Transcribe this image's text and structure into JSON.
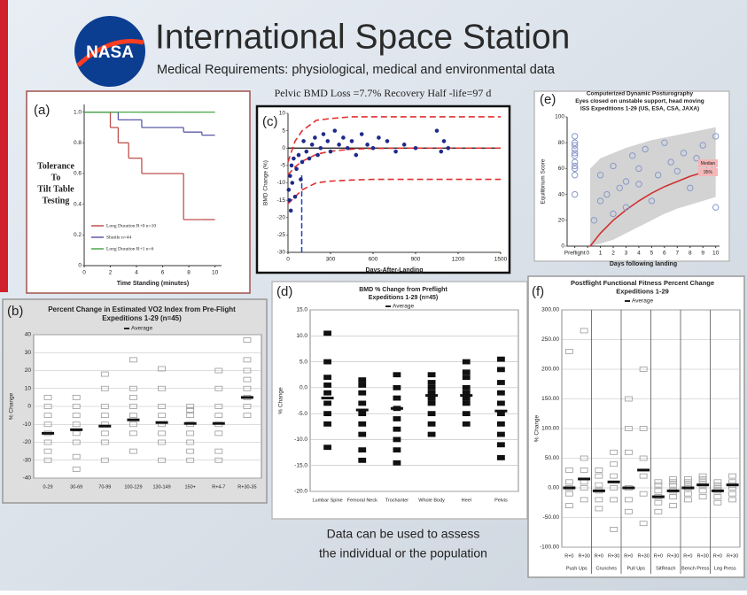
{
  "header": {
    "logo": "NASA",
    "title": "International Space Station",
    "subtitle": "Medical Requirements: physiological, medical and environmental data"
  },
  "caption": [
    "Data can be used to assess",
    "the individual or the population"
  ],
  "chart_data": [
    {
      "type": "step",
      "panel_label": "(a)",
      "title": [],
      "ylabel_lines": [
        "Tolerance",
        "To",
        "Tilt Table",
        "Testing"
      ],
      "xlabel": "Time Standing (minutes)",
      "x": [
        0,
        2,
        2.6,
        3.4,
        4.4,
        7.6,
        9,
        10
      ],
      "xlim": [
        0,
        10.5
      ],
      "xticks": [
        0,
        2,
        4,
        6,
        8,
        10
      ],
      "ylim": [
        0,
        1.05
      ],
      "yticks": [
        0,
        0.2,
        0.4,
        0.6,
        0.8,
        {
          "value": 1,
          "label": "1.0"
        }
      ],
      "series": [
        {
          "name": "Long Duration R+0 n=10",
          "color": "#c0504d",
          "values": [
            1,
            0.9,
            0.8,
            0.7,
            0.6,
            0.3,
            0.3,
            0.3
          ]
        },
        {
          "name": "Shuttle n=44",
          "color": "#5b5ba8",
          "values": [
            1,
            1,
            0.95,
            0.95,
            0.9,
            0.87,
            0.85,
            0.85
          ]
        },
        {
          "name": "Long Duration R+1 n=6",
          "color": "#4aa84a",
          "values": [
            1,
            1,
            1,
            1,
            1,
            1,
            1,
            1
          ]
        }
      ]
    },
    {
      "type": "scatter",
      "panel_label": "(c)",
      "title": [
        "Pelvic BMD Loss =7.7% Recovery Half -life=97 d"
      ],
      "xlabel": "Days-After-Landing",
      "ylabel": "BMD Change (%)",
      "xlim": [
        0,
        1500
      ],
      "xticks": [
        0,
        300,
        600,
        900,
        1200,
        1500
      ],
      "ylim": [
        -30,
        10
      ],
      "yticks": [
        -30,
        -25,
        -20,
        -15,
        -10,
        -5,
        0,
        5,
        10
      ],
      "color": "#1f2a8a",
      "x": [
        5,
        10,
        15,
        20,
        25,
        30,
        40,
        50,
        60,
        75,
        90,
        100,
        110,
        130,
        150,
        170,
        190,
        210,
        230,
        250,
        280,
        300,
        330,
        360,
        390,
        420,
        450,
        480,
        520,
        560,
        600,
        640,
        700,
        760,
        820,
        900,
        1050,
        1080,
        1100,
        1130
      ],
      "values": [
        -12,
        -15,
        -8,
        -18,
        -5,
        -10,
        -3,
        -14,
        -6,
        -2,
        -9,
        -4,
        2,
        -1,
        -3,
        1,
        3,
        -2,
        0,
        4,
        2,
        -1,
        5,
        1,
        3,
        0,
        2,
        -2,
        4,
        1,
        0,
        3,
        2,
        -1,
        1,
        0,
        5,
        -1,
        2,
        0
      ],
      "lines": [
        {
          "color": "#e03030",
          "x": [
            0,
            50,
            100,
            200,
            300,
            450,
            600,
            900,
            1500
          ],
          "values": [
            -7.7,
            -5.4,
            -3.8,
            -1.8,
            -0.9,
            -0.3,
            -0.1,
            0,
            0
          ]
        },
        {
          "color": "#e03030",
          "x": [
            0,
            50,
            100,
            200,
            300,
            450,
            600,
            900,
            1500
          ],
          "values": [
            -4,
            2,
            5,
            8,
            8.5,
            9,
            9,
            9,
            9
          ]
        },
        {
          "color": "#e03030",
          "x": [
            0,
            50,
            100,
            200,
            300,
            450,
            600,
            900,
            1500
          ],
          "values": [
            -16,
            -14,
            -12,
            -10,
            -9.5,
            -9.2,
            -9,
            -9,
            -9
          ]
        }
      ],
      "vline": {
        "x": 97,
        "values": [
          -30,
          -7.7
        ],
        "color": "#2040c0"
      }
    },
    {
      "type": "scatter",
      "panel_label": "(e)",
      "title": [
        "Computerized Dynamic Posturography",
        "Eyes closed on unstable support, head moving",
        "ISS Expeditions 1-29 (US, ESA, CSA, JAXA)"
      ],
      "xlabel": "Days following landing",
      "ylabel": "Equilibrium Score",
      "xlim": [
        -1.6,
        10.3
      ],
      "xticks": [
        {
          "value": -1,
          "label": "Preflight"
        },
        0,
        1,
        2,
        3,
        4,
        5,
        6,
        7,
        8,
        9,
        10
      ],
      "ylim": [
        0,
        100
      ],
      "yticks": [
        0,
        20,
        40,
        60,
        80,
        100
      ],
      "color": "#8899cc",
      "x": [
        -1,
        -1,
        -1,
        -1,
        -1,
        -1,
        -1,
        -1,
        -1,
        -1,
        -1,
        0.5,
        1,
        1,
        1.5,
        2,
        2,
        2.5,
        3,
        3,
        3.5,
        4,
        4,
        4.5,
        5,
        5.5,
        6,
        6.5,
        7,
        7.5,
        8,
        8.5,
        9,
        9.5,
        10,
        10
      ],
      "values": [
        40,
        55,
        60,
        62,
        65,
        70,
        72,
        75,
        78,
        80,
        85,
        20,
        35,
        55,
        40,
        25,
        62,
        45,
        50,
        30,
        70,
        48,
        60,
        75,
        35,
        55,
        80,
        65,
        58,
        72,
        45,
        68,
        78,
        60,
        85,
        30
      ],
      "band": {
        "color": "#c8c8c8",
        "x": [
          0.2,
          1,
          2,
          3,
          4,
          5,
          6,
          7,
          8,
          9,
          10
        ],
        "low": [
          0,
          2,
          5,
          10,
          15,
          20,
          25,
          29,
          32,
          35,
          38
        ],
        "high": [
          60,
          68,
          72,
          76,
          79,
          82,
          84,
          86,
          88,
          90,
          92
        ]
      },
      "lines": [
        {
          "color": "#d03030",
          "x": [
            0.2,
            1,
            2,
            3,
            4,
            5,
            6,
            7,
            8,
            9,
            10
          ],
          "values": [
            0,
            10,
            20,
            28,
            35,
            41,
            46,
            50,
            54,
            57,
            60
          ]
        }
      ],
      "legend_labels": [
        "Median",
        "95%"
      ]
    },
    {
      "type": "strip",
      "panel_label": "(b)",
      "title": [
        "Percent Change in Estimated VO2 Index from Pre-Flight",
        "Expeditions 1-29 (n=45)"
      ],
      "legend": "Average",
      "ylabel": "% Change",
      "categories": [
        "0-29",
        "30-69",
        "70-99",
        "100-129",
        "130-149",
        "150+",
        "R+4-7",
        "R+30-35"
      ],
      "ylim": [
        -40,
        40
      ],
      "yticks": [
        -40,
        -30,
        -20,
        -10,
        0,
        10,
        20,
        30,
        40
      ],
      "color": "#999999",
      "values": [
        -15,
        -13,
        -11,
        -7.5,
        -9,
        -9.5,
        -9.5,
        5
      ],
      "points": [
        [
          -25,
          -20,
          -15,
          -10,
          -5,
          0,
          5,
          -30
        ],
        [
          -35,
          -28,
          -20,
          -15,
          -10,
          -5,
          0,
          5
        ],
        [
          -30,
          -20,
          -15,
          -10,
          -5,
          0,
          10,
          18
        ],
        [
          -25,
          -15,
          -10,
          -5,
          0,
          5,
          10,
          26
        ],
        [
          -30,
          -20,
          -15,
          -10,
          -5,
          0,
          10,
          21
        ],
        [
          -30,
          -20,
          -15,
          -10,
          -5,
          0,
          -25,
          -2
        ],
        [
          -30,
          -25,
          -15,
          -10,
          -5,
          0,
          10,
          20
        ],
        [
          -5,
          0,
          5,
          10,
          15,
          20,
          26,
          37
        ]
      ]
    },
    {
      "type": "strip",
      "panel_label": "(d)",
      "title": [
        "BMD % Change from Preflight",
        "Expeditions 1-29 (n=45)"
      ],
      "legend": "Average",
      "ylabel": "% Change",
      "categories": [
        "Lumbar Spine",
        "Femoral Neck",
        "Trochanter",
        "Whole Body",
        "Heel",
        "Pelvis"
      ],
      "ylim": [
        -20,
        15
      ],
      "yticks": [
        {
          "value": -20,
          "label": "-20.0"
        },
        {
          "value": -15,
          "label": "-15.0"
        },
        {
          "value": -10,
          "label": "-10.0"
        },
        {
          "value": -5,
          "label": "-5.0"
        },
        {
          "value": 0,
          "label": "0.0"
        },
        {
          "value": 5,
          "label": "5.0"
        },
        {
          "value": 10,
          "label": "10.0"
        },
        {
          "value": 15,
          "label": "15.0"
        }
      ],
      "color": "#111111",
      "values": [
        -2,
        -4.3,
        -4,
        -1.5,
        -1.5,
        -4.5
      ],
      "points": [
        [
          -11.5,
          -7,
          -5,
          -3,
          -1,
          0.5,
          2,
          5,
          10.5
        ],
        [
          -14,
          -12,
          -9,
          -7,
          -5,
          -3,
          -1,
          0.5,
          1.5
        ],
        [
          -14.5,
          -12,
          -10,
          -8,
          -6,
          -4,
          -2,
          0,
          2.5
        ],
        [
          -9,
          -7,
          -5,
          -3,
          -2,
          -1,
          0,
          1,
          2.5
        ],
        [
          -7,
          -5,
          -3,
          -2,
          -1,
          0,
          2,
          3,
          5
        ],
        [
          -13.5,
          -11,
          -9,
          -7,
          -5,
          -3,
          -1,
          1,
          3.5,
          5.5
        ]
      ]
    },
    {
      "type": "strip",
      "panel_label": "(f)",
      "title": [
        "Postflight Functional Fitness Percent Change",
        "Expeditions 1-29"
      ],
      "legend": "Average",
      "ylabel": "% Change",
      "categories": [
        "R+0",
        "R+30",
        "R+0",
        "R+30",
        "R+0",
        "R+30",
        "R+0",
        "R+30",
        "R+0",
        "R+30",
        "R+0",
        "R+30"
      ],
      "groups": [
        "Push Ups",
        "Crunches",
        "Pull Ups",
        "SitReach",
        "Bench Press",
        "Leg Press"
      ],
      "ylim": [
        -100,
        300
      ],
      "yticks": [
        {
          "value": -100,
          "label": "-100.00"
        },
        {
          "value": -50,
          "label": "-50.00"
        },
        {
          "value": 0,
          "label": "0.00"
        },
        {
          "value": 50,
          "label": "50.00"
        },
        {
          "value": 100,
          "label": "100.00"
        },
        {
          "value": 150,
          "label": "150.00"
        },
        {
          "value": 200,
          "label": "200.00"
        },
        {
          "value": 250,
          "label": "250.00"
        },
        {
          "value": 300,
          "label": "300.00"
        }
      ],
      "color": "#999999",
      "values": [
        0,
        15,
        -5,
        10,
        0,
        30,
        -15,
        -5,
        0,
        5,
        -5,
        5
      ],
      "points": [
        [
          -30,
          -10,
          0,
          10,
          30,
          230
        ],
        [
          -20,
          0,
          10,
          30,
          50,
          265
        ],
        [
          -35,
          -20,
          -5,
          5,
          20,
          30
        ],
        [
          -70,
          -20,
          0,
          20,
          40,
          60
        ],
        [
          -40,
          -20,
          0,
          60,
          100,
          150
        ],
        [
          -60,
          -10,
          20,
          50,
          100,
          200
        ],
        [
          -40,
          -25,
          -15,
          -5,
          5,
          10
        ],
        [
          -30,
          -15,
          -5,
          5,
          10,
          15
        ],
        [
          -20,
          -10,
          0,
          5,
          10,
          15
        ],
        [
          -15,
          -5,
          5,
          10,
          15,
          20
        ],
        [
          -25,
          -15,
          -5,
          0,
          5,
          10
        ],
        [
          -20,
          -10,
          0,
          5,
          10,
          20
        ]
      ]
    }
  ]
}
